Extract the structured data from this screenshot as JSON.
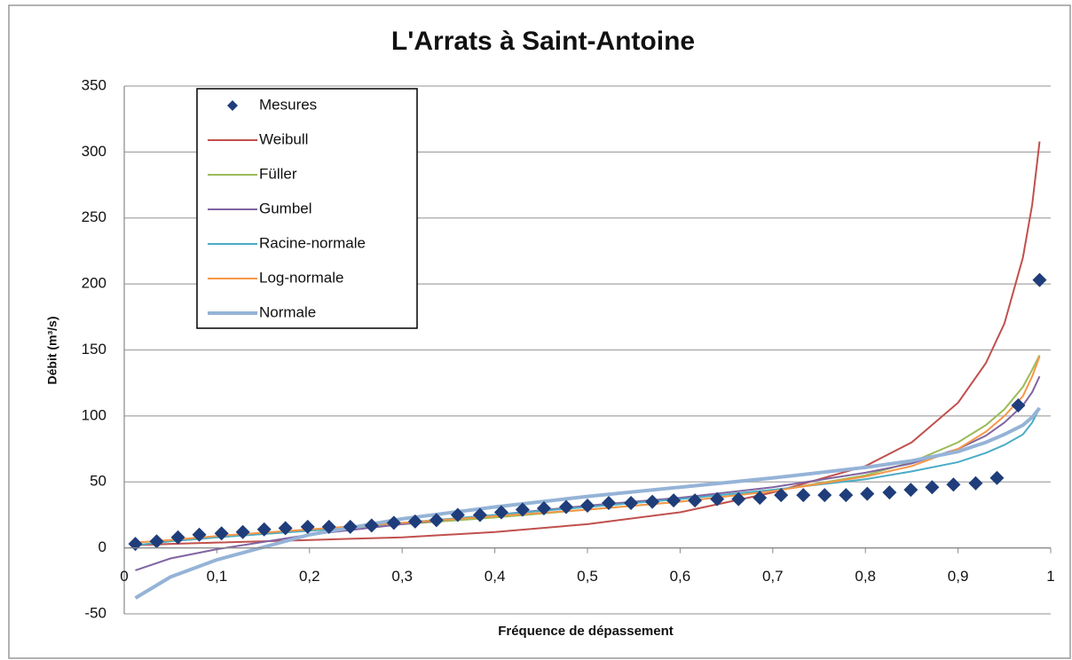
{
  "chart_data": {
    "type": "line",
    "title": "L'Arrats à Saint-Antoine",
    "x_label": "Fréquence de dépassement",
    "y_label": "Débit (m³/s)",
    "xlim": [
      0,
      1
    ],
    "xticks": [
      0,
      {
        "value": 0.1,
        "label": "0,1"
      },
      {
        "value": 0.2,
        "label": "0,2"
      },
      {
        "value": 0.3,
        "label": "0,3"
      },
      {
        "value": 0.4,
        "label": "0,4"
      },
      {
        "value": 0.5,
        "label": "0,5"
      },
      {
        "value": 0.6,
        "label": "0,6"
      },
      {
        "value": 0.7,
        "label": "0,7"
      },
      {
        "value": 0.8,
        "label": "0,8"
      },
      {
        "value": 0.9,
        "label": "0,9"
      },
      1
    ],
    "ylim": [
      -50,
      350
    ],
    "yticks": [
      -50,
      0,
      50,
      100,
      150,
      200,
      250,
      300,
      350
    ],
    "grid": true,
    "legend": "upper left",
    "series": [
      {
        "name": "Mesures",
        "type": "scatter",
        "color": "#1f3d7a",
        "x": [
          0.012,
          0.035,
          0.058,
          0.081,
          0.105,
          0.128,
          0.151,
          0.174,
          0.198,
          0.221,
          0.244,
          0.267,
          0.291,
          0.314,
          0.337,
          0.36,
          0.384,
          0.407,
          0.43,
          0.453,
          0.477,
          0.5,
          0.523,
          0.547,
          0.57,
          0.593,
          0.616,
          0.64,
          0.663,
          0.686,
          0.709,
          0.733,
          0.756,
          0.779,
          0.802,
          0.826,
          0.849,
          0.872,
          0.895,
          0.919,
          0.942,
          0.965,
          0.988
        ],
        "values": [
          3,
          5,
          8,
          10,
          11,
          12,
          14,
          15,
          16,
          16,
          16,
          17,
          19,
          20,
          21,
          25,
          25,
          27,
          29,
          30,
          31,
          32,
          34,
          34,
          35,
          36,
          36,
          37,
          37,
          38,
          40,
          40,
          40,
          40,
          41,
          42,
          44,
          46,
          48,
          49,
          53,
          108,
          203
        ]
      },
      {
        "name": "Weibull",
        "type": "line",
        "color": "#c0504d",
        "width": 2,
        "x": [
          0.012,
          0.05,
          0.1,
          0.2,
          0.3,
          0.4,
          0.5,
          0.6,
          0.7,
          0.8,
          0.85,
          0.9,
          0.93,
          0.95,
          0.97,
          0.98,
          0.988
        ],
        "values": [
          2,
          3,
          4,
          6,
          8,
          12,
          18,
          27,
          42,
          62,
          80,
          110,
          140,
          170,
          220,
          260,
          308
        ]
      },
      {
        "name": "Füller",
        "type": "line",
        "color": "#9bbb59",
        "width": 2,
        "x": [
          0.012,
          0.05,
          0.1,
          0.2,
          0.3,
          0.4,
          0.5,
          0.6,
          0.7,
          0.8,
          0.85,
          0.9,
          0.93,
          0.95,
          0.97,
          0.98,
          0.988
        ],
        "values": [
          2,
          5,
          8,
          13,
          18,
          23,
          29,
          35,
          43,
          55,
          65,
          80,
          93,
          105,
          122,
          135,
          146
        ]
      },
      {
        "name": "Gumbel",
        "type": "line",
        "color": "#8064a2",
        "width": 2,
        "x": [
          0.012,
          0.05,
          0.1,
          0.2,
          0.3,
          0.4,
          0.5,
          0.6,
          0.7,
          0.8,
          0.85,
          0.9,
          0.93,
          0.95,
          0.97,
          0.98,
          0.988
        ],
        "values": [
          -17,
          -8,
          -1,
          10,
          18,
          25,
          32,
          38,
          46,
          57,
          64,
          75,
          85,
          95,
          108,
          118,
          130
        ]
      },
      {
        "name": "Racine-normale",
        "type": "line",
        "color": "#4bacc6",
        "width": 2,
        "x": [
          0.012,
          0.05,
          0.1,
          0.2,
          0.3,
          0.4,
          0.5,
          0.6,
          0.7,
          0.8,
          0.85,
          0.9,
          0.93,
          0.95,
          0.97,
          0.98,
          0.988
        ],
        "values": [
          2,
          5,
          8,
          13,
          19,
          25,
          31,
          37,
          44,
          52,
          58,
          65,
          72,
          78,
          86,
          95,
          106
        ]
      },
      {
        "name": "Log-normale",
        "type": "line",
        "color": "#f79646",
        "width": 2,
        "x": [
          0.012,
          0.05,
          0.1,
          0.2,
          0.3,
          0.4,
          0.5,
          0.6,
          0.7,
          0.8,
          0.85,
          0.9,
          0.93,
          0.95,
          0.97,
          0.98,
          0.988
        ],
        "values": [
          4,
          6,
          9,
          14,
          19,
          24,
          29,
          35,
          43,
          54,
          62,
          75,
          88,
          100,
          115,
          130,
          145
        ]
      },
      {
        "name": "Normale",
        "type": "line",
        "color": "#95b3d7",
        "width": 4,
        "x": [
          0.012,
          0.05,
          0.1,
          0.2,
          0.3,
          0.4,
          0.5,
          0.6,
          0.7,
          0.8,
          0.85,
          0.9,
          0.93,
          0.95,
          0.97,
          0.98,
          0.988
        ],
        "values": [
          -38,
          -22,
          -9,
          10,
          22,
          31,
          39,
          46,
          53,
          61,
          66,
          73,
          80,
          86,
          93,
          99,
          106
        ]
      }
    ]
  }
}
